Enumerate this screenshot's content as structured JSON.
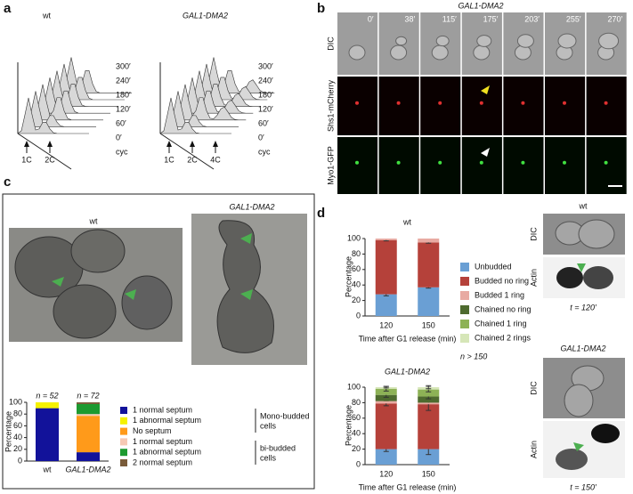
{
  "panel_a": {
    "label": "a",
    "wt": {
      "title": "wt",
      "times": [
        "300′",
        "240′",
        "180′",
        "120′",
        "60′",
        "0′",
        "cyc"
      ],
      "peaks": [
        "1C",
        "2C"
      ]
    },
    "mutant": {
      "title": "GAL1-DMA2",
      "times": [
        "300′",
        "240′",
        "180′",
        "120′",
        "60′",
        "0′",
        "cyc"
      ],
      "peaks": [
        "1C",
        "2C",
        "4C"
      ]
    }
  },
  "panel_b": {
    "label": "b",
    "title": "GAL1-DMA2",
    "times": [
      "0′",
      "38′",
      "115′",
      "175′",
      "203′",
      "255′",
      "270′"
    ],
    "rows": [
      "DIC",
      "Shs1-mCherry",
      "Myo1-GFP"
    ]
  },
  "panel_c": {
    "label": "c",
    "image_titles": [
      "wt",
      "GAL1-DMA2"
    ],
    "groups": [
      [
        "Mono-budded",
        "cells"
      ],
      [
        "bi-budded",
        "cells"
      ]
    ]
  },
  "panel_d": {
    "label": "d",
    "note": "n > 150",
    "wt": {
      "title": "wt",
      "rows": [
        "DIC",
        "Actin"
      ],
      "time": "t = 120′"
    },
    "mutant": {
      "title": "GAL1-DMA2",
      "rows": [
        "DIC",
        "Actin"
      ],
      "time": "t = 150′"
    }
  },
  "chart_data": [
    {
      "type": "stacked-bar",
      "y_label": "Percentage",
      "categories": [
        "wt",
        "GAL1-DMA2"
      ],
      "n_labels": [
        "n = 52",
        "n = 72"
      ],
      "ylim": [
        0,
        100
      ],
      "yticks": [
        0,
        20,
        40,
        60,
        80,
        100
      ],
      "series": [
        {
          "name": "1 normal septum",
          "color": "#12129a",
          "values": [
            90,
            15
          ]
        },
        {
          "name": "1 abnormal septum",
          "color": "#f5f200",
          "values": [
            10,
            0
          ]
        },
        {
          "name": "No septum",
          "color": "#ff9a1a",
          "values": [
            0,
            62
          ]
        },
        {
          "name": "1 normal septum",
          "color": "#f6c9b4",
          "values": [
            0,
            3
          ]
        },
        {
          "name": "1 abnormal septum",
          "color": "#1d9a30",
          "values": [
            0,
            17
          ]
        },
        {
          "name": "2 normal septum",
          "color": "#7a5c3a",
          "values": [
            0,
            3
          ]
        }
      ]
    },
    {
      "type": "stacked-bar",
      "title": "wt",
      "y_label": "Percentage",
      "x_label": "Time after G1 release (min)",
      "categories": [
        "120",
        "150"
      ],
      "ylim": [
        0,
        100
      ],
      "yticks": [
        0,
        20,
        40,
        60,
        80,
        100
      ],
      "series": [
        {
          "name": "Unbudded",
          "color": "#6a9fd4",
          "values": [
            28,
            37
          ],
          "errors": [
            2,
            1
          ]
        },
        {
          "name": "Budded no ring",
          "color": "#b5413a",
          "values": [
            70,
            58
          ],
          "errors": [
            1,
            1
          ]
        },
        {
          "name": "Budded 1 ring",
          "color": "#e8aaa2",
          "values": [
            2,
            5
          ]
        }
      ]
    },
    {
      "type": "stacked-bar",
      "title": "GAL1-DMA2",
      "y_label": "Percentage",
      "x_label": "Time after G1 release (min)",
      "categories": [
        "120",
        "150"
      ],
      "ylim": [
        0,
        100
      ],
      "yticks": [
        0,
        20,
        40,
        60,
        80,
        100
      ],
      "series": [
        {
          "name": "Unbudded",
          "color": "#6a9fd4",
          "values": [
            20,
            20
          ],
          "errors": [
            3,
            7
          ]
        },
        {
          "name": "Budded no ring",
          "color": "#b5413a",
          "values": [
            59,
            58
          ],
          "errors": [
            3,
            8
          ]
        },
        {
          "name": "Budded 1 ring",
          "color": "#e8aaa2",
          "values": [
            3,
            2
          ]
        },
        {
          "name": "Chained no ring",
          "color": "#4e6b2f",
          "values": [
            8,
            8
          ],
          "errors": [
            3,
            3
          ]
        },
        {
          "name": "Chained 1 ring",
          "color": "#8db256",
          "values": [
            8,
            9
          ],
          "errors": [
            3,
            3
          ]
        },
        {
          "name": "Chained 2 rings",
          "color": "#d6e6b8",
          "values": [
            2,
            3
          ],
          "errors": [
            1,
            2
          ]
        }
      ]
    }
  ]
}
